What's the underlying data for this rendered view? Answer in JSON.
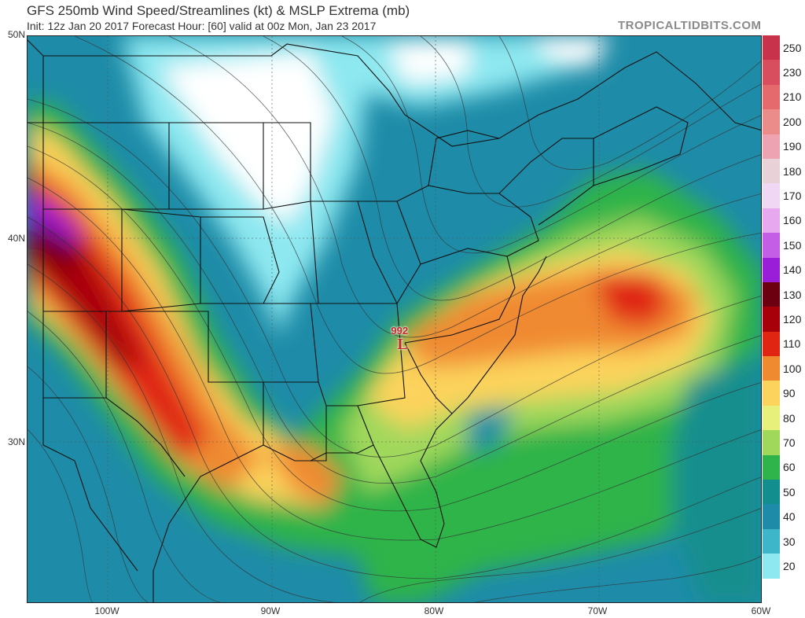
{
  "header": {
    "title": "GFS 250mb Wind Speed/Streamlines (kt) & MSLP Extrema (mb)",
    "subtitle": "Init: 12z Jan 20 2017   Forecast Hour: [60]   valid at 00z Mon, Jan 23 2017",
    "brand": "TROPICALTIDBITS.COM"
  },
  "axes": {
    "lat_labels": [
      {
        "label": "50N",
        "value": 50
      },
      {
        "label": "40N",
        "value": 40
      },
      {
        "label": "30N",
        "value": 30
      }
    ],
    "lon_labels": [
      {
        "label": "100W",
        "value": -100
      },
      {
        "label": "90W",
        "value": -90
      },
      {
        "label": "80W",
        "value": -80
      },
      {
        "label": "70W",
        "value": -70
      },
      {
        "label": "60W",
        "value": -60
      }
    ]
  },
  "extrema": [
    {
      "type": "low",
      "symbol": "L",
      "pressure": "992",
      "lon": -82.0,
      "lat": 35.0
    }
  ],
  "legend": {
    "unit": "kt",
    "levels": [
      {
        "label": "250",
        "color": "#c8324b"
      },
      {
        "label": "230",
        "color": "#d84e5e"
      },
      {
        "label": "210",
        "color": "#e46a6e"
      },
      {
        "label": "200",
        "color": "#ec8c8a"
      },
      {
        "label": "190",
        "color": "#eda3b1"
      },
      {
        "label": "180",
        "color": "#e8d2d8"
      },
      {
        "label": "170",
        "color": "#f0d8f4"
      },
      {
        "label": "160",
        "color": "#e8a8f0"
      },
      {
        "label": "150",
        "color": "#c45ee6"
      },
      {
        "label": "140",
        "color": "#9a1ed8"
      },
      {
        "label": "130",
        "color": "#6c0010"
      },
      {
        "label": "120",
        "color": "#a8000a"
      },
      {
        "label": "110",
        "color": "#e02612"
      },
      {
        "label": "100",
        "color": "#f08a30"
      },
      {
        "label": "90",
        "color": "#fcd35c"
      },
      {
        "label": "80",
        "color": "#e8f07c"
      },
      {
        "label": "70",
        "color": "#a0d85c"
      },
      {
        "label": "60",
        "color": "#2eb44a"
      },
      {
        "label": "50",
        "color": "#138e8e"
      },
      {
        "label": "40",
        "color": "#1e8ca8"
      },
      {
        "label": "30",
        "color": "#3cb6c8"
      },
      {
        "label": "20",
        "color": "#8ee8f0"
      },
      {
        "label": "",
        "color": "#ffffff"
      }
    ]
  }
}
